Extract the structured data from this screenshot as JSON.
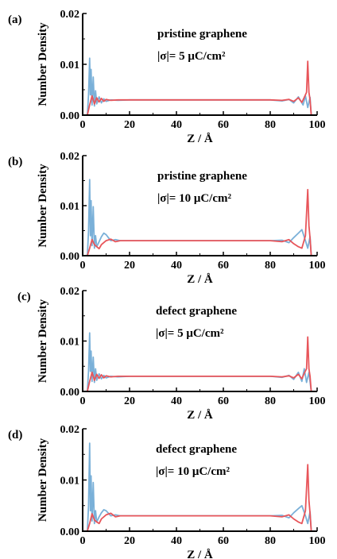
{
  "figure": {
    "background": "#ffffff",
    "axis_color": "#000000",
    "series_colors": {
      "red": "#e8555a",
      "blue": "#7ab0d8"
    }
  },
  "chart_data": [
    {
      "type": "line",
      "panel_label": "(a)",
      "annotation": [
        "pristine graphene",
        "|σ|= 5 μC/cm²"
      ],
      "xlabel": "Z / Å",
      "ylabel": "Number Density",
      "xlim": [
        0,
        100
      ],
      "ylim": [
        0,
        0.02
      ],
      "xticks": [
        "0",
        "20",
        "40",
        "60",
        "80",
        "100"
      ],
      "yticks": [
        "0.00",
        "0.01",
        "0.02"
      ],
      "grid": false,
      "series": [
        {
          "color": "#7ab0d8",
          "x": [
            2.0,
            2.5,
            3.0,
            3.3,
            3.6,
            4.0,
            4.5,
            5.0,
            5.5,
            6.0,
            7.0,
            8.0,
            9.0,
            10.0,
            12.0,
            15.0,
            20.0,
            30.0,
            40.0,
            50.0,
            60.0,
            70.0,
            80.0,
            85.0,
            88.0,
            90.0,
            92.0,
            94.0,
            95.0,
            96.0,
            97.0,
            97.5
          ],
          "y": [
            0.0,
            0.004,
            0.0112,
            0.004,
            0.009,
            0.002,
            0.0075,
            0.0018,
            0.0048,
            0.0022,
            0.0036,
            0.0024,
            0.0032,
            0.0027,
            0.003,
            0.0029,
            0.003,
            0.003,
            0.003,
            0.003,
            0.003,
            0.003,
            0.003,
            0.0028,
            0.0031,
            0.0024,
            0.0036,
            0.002,
            0.0038,
            0.0015,
            0.0035,
            0.0
          ]
        },
        {
          "color": "#e8555a",
          "x": [
            2.0,
            3.0,
            4.0,
            5.0,
            6.0,
            7.0,
            8.0,
            9.0,
            10.0,
            12.0,
            15.0,
            20.0,
            30.0,
            40.0,
            50.0,
            60.0,
            70.0,
            80.0,
            85.0,
            88.0,
            90.0,
            92.0,
            93.5,
            94.5,
            95.5,
            96.0,
            96.5,
            97.0,
            97.5
          ],
          "y": [
            0.0,
            0.002,
            0.0038,
            0.0022,
            0.0034,
            0.0026,
            0.0033,
            0.0027,
            0.0031,
            0.0029,
            0.003,
            0.003,
            0.003,
            0.003,
            0.003,
            0.003,
            0.003,
            0.003,
            0.0029,
            0.0031,
            0.0027,
            0.0034,
            0.0025,
            0.0035,
            0.0045,
            0.0106,
            0.0045,
            0.003,
            0.0
          ]
        }
      ]
    },
    {
      "type": "line",
      "panel_label": "(b)",
      "annotation": [
        "pristine graphene",
        "|σ|= 10 μC/cm²"
      ],
      "xlabel": "Z / Å",
      "ylabel": "Number Density",
      "xlim": [
        0,
        100
      ],
      "ylim": [
        0,
        0.02
      ],
      "xticks": [
        "0",
        "20",
        "40",
        "60",
        "80",
        "100"
      ],
      "yticks": [
        "0.00",
        "0.01",
        "0.02"
      ],
      "grid": false,
      "series": [
        {
          "color": "#7ab0d8",
          "x": [
            2.0,
            2.5,
            3.0,
            3.3,
            3.6,
            4.0,
            4.5,
            5.0,
            5.5,
            6.0,
            7.0,
            8.0,
            9.0,
            10.0,
            11.0,
            12.0,
            14.0,
            16.0,
            20.0,
            30.0,
            40.0,
            50.0,
            60.0,
            70.0,
            80.0,
            85.0,
            88.0,
            90.0,
            92.0,
            93.5,
            95.0,
            96.0,
            97.0,
            97.5
          ],
          "y": [
            0.0,
            0.005,
            0.0152,
            0.004,
            0.011,
            0.002,
            0.0098,
            0.0015,
            0.004,
            0.0018,
            0.0028,
            0.0038,
            0.0045,
            0.0042,
            0.0036,
            0.003,
            0.0032,
            0.003,
            0.003,
            0.003,
            0.003,
            0.003,
            0.003,
            0.003,
            0.003,
            0.0031,
            0.0026,
            0.0036,
            0.0045,
            0.0052,
            0.003,
            0.0015,
            0.0038,
            0.0
          ]
        },
        {
          "color": "#e8555a",
          "x": [
            2.0,
            3.0,
            4.0,
            5.0,
            6.0,
            7.0,
            8.0,
            10.0,
            12.0,
            14.0,
            16.0,
            20.0,
            30.0,
            40.0,
            50.0,
            60.0,
            70.0,
            80.0,
            85.0,
            88.0,
            90.0,
            92.0,
            93.5,
            95.0,
            96.0,
            96.5,
            97.0,
            97.5
          ],
          "y": [
            0.0,
            0.0015,
            0.0032,
            0.0022,
            0.0018,
            0.0014,
            0.0022,
            0.003,
            0.0033,
            0.0028,
            0.003,
            0.003,
            0.003,
            0.003,
            0.003,
            0.003,
            0.003,
            0.003,
            0.0028,
            0.0032,
            0.0024,
            0.0018,
            0.0015,
            0.004,
            0.0132,
            0.006,
            0.0035,
            0.0
          ]
        }
      ]
    },
    {
      "type": "line",
      "panel_label": "(c)",
      "annotation": [
        "defect graphene",
        "|σ|= 5 μC/cm²"
      ],
      "xlabel": "Z / Å",
      "ylabel": "Number Density",
      "xlim": [
        0,
        100
      ],
      "ylim": [
        0,
        0.02
      ],
      "xticks": [
        "0",
        "20",
        "40",
        "60",
        "80",
        "100"
      ],
      "yticks": [
        "0.00",
        "0.01",
        "0.02"
      ],
      "grid": false,
      "series": [
        {
          "color": "#7ab0d8",
          "x": [
            2.0,
            2.5,
            3.0,
            3.3,
            3.6,
            4.0,
            4.5,
            5.0,
            5.5,
            6.0,
            7.0,
            8.0,
            9.0,
            10.0,
            12.0,
            15.0,
            20.0,
            30.0,
            40.0,
            50.0,
            60.0,
            70.0,
            80.0,
            85.0,
            88.0,
            90.0,
            92.0,
            93.5,
            94.5,
            95.5,
            96.5,
            97.5
          ],
          "y": [
            0.0,
            0.004,
            0.0116,
            0.004,
            0.008,
            0.002,
            0.0068,
            0.0018,
            0.0045,
            0.0022,
            0.0035,
            0.0025,
            0.0032,
            0.0027,
            0.003,
            0.0029,
            0.003,
            0.003,
            0.003,
            0.003,
            0.003,
            0.003,
            0.003,
            0.0028,
            0.0032,
            0.0024,
            0.0038,
            0.002,
            0.0045,
            0.0018,
            0.0038,
            0.0
          ]
        },
        {
          "color": "#e8555a",
          "x": [
            2.0,
            3.0,
            4.0,
            5.0,
            6.0,
            7.0,
            8.0,
            9.0,
            10.0,
            12.0,
            15.0,
            20.0,
            30.0,
            40.0,
            50.0,
            60.0,
            70.0,
            80.0,
            85.0,
            88.0,
            90.0,
            92.0,
            93.5,
            94.5,
            95.5,
            96.0,
            96.5,
            97.0,
            97.5
          ],
          "y": [
            0.0,
            0.002,
            0.0038,
            0.0022,
            0.0034,
            0.0026,
            0.0033,
            0.0027,
            0.0031,
            0.0029,
            0.003,
            0.003,
            0.003,
            0.003,
            0.003,
            0.003,
            0.003,
            0.003,
            0.0029,
            0.0031,
            0.0027,
            0.0034,
            0.0025,
            0.0036,
            0.0045,
            0.0108,
            0.0045,
            0.003,
            0.0
          ]
        }
      ]
    },
    {
      "type": "line",
      "panel_label": "(d)",
      "annotation": [
        "defect graphene",
        "|σ|= 10 μC/cm²"
      ],
      "xlabel": "Z / Å",
      "ylabel": "Number Density",
      "xlim": [
        0,
        100
      ],
      "ylim": [
        0,
        0.02
      ],
      "xticks": [
        "0",
        "20",
        "40",
        "60",
        "80",
        "100"
      ],
      "yticks": [
        "0.00",
        "0.01",
        "0.02"
      ],
      "grid": false,
      "series": [
        {
          "color": "#7ab0d8",
          "x": [
            2.0,
            2.5,
            3.0,
            3.3,
            3.6,
            4.0,
            4.5,
            5.0,
            5.5,
            6.0,
            7.0,
            8.0,
            9.0,
            10.0,
            11.0,
            12.0,
            14.0,
            16.0,
            20.0,
            30.0,
            40.0,
            50.0,
            60.0,
            70.0,
            80.0,
            85.0,
            88.0,
            90.0,
            92.0,
            93.5,
            95.0,
            96.0,
            97.0,
            97.5
          ],
          "y": [
            0.0,
            0.005,
            0.0172,
            0.004,
            0.0108,
            0.002,
            0.0095,
            0.0015,
            0.004,
            0.0018,
            0.0028,
            0.0036,
            0.0042,
            0.004,
            0.0035,
            0.003,
            0.0032,
            0.003,
            0.003,
            0.003,
            0.003,
            0.003,
            0.003,
            0.003,
            0.003,
            0.0031,
            0.0026,
            0.0036,
            0.0044,
            0.005,
            0.003,
            0.0015,
            0.0038,
            0.0
          ]
        },
        {
          "color": "#e8555a",
          "x": [
            2.0,
            3.0,
            4.0,
            5.0,
            6.0,
            7.0,
            8.0,
            10.0,
            12.0,
            14.0,
            16.0,
            20.0,
            30.0,
            40.0,
            50.0,
            60.0,
            70.0,
            80.0,
            85.0,
            88.0,
            90.0,
            92.0,
            93.5,
            95.0,
            96.0,
            96.5,
            97.0,
            97.5
          ],
          "y": [
            0.0,
            0.0015,
            0.0034,
            0.0022,
            0.0018,
            0.0015,
            0.0024,
            0.0032,
            0.0035,
            0.0028,
            0.003,
            0.003,
            0.003,
            0.003,
            0.003,
            0.003,
            0.003,
            0.003,
            0.0028,
            0.0032,
            0.0024,
            0.0018,
            0.0015,
            0.004,
            0.013,
            0.006,
            0.0035,
            0.0
          ]
        }
      ]
    }
  ]
}
